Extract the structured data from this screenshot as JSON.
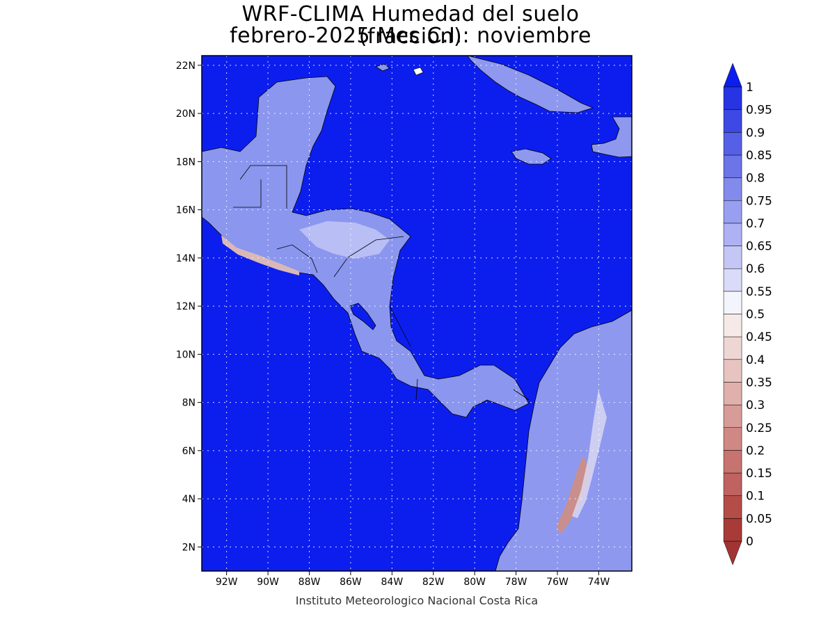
{
  "title": {
    "line1": "WRF-CLIMA Humedad del suelo (fraccion)",
    "line2": "febrero-2025 Mes C.I.: noviembre"
  },
  "footer": "Instituto Meteorologico Nacional Costa Rica",
  "map": {
    "lon_range": [
      -93.2,
      -72.4
    ],
    "lat_range": [
      1.0,
      22.4
    ],
    "ocean_color": "#0c1eee",
    "x_ticks": [
      {
        "value": -92,
        "label": "92W"
      },
      {
        "value": -90,
        "label": "90W"
      },
      {
        "value": -88,
        "label": "88W"
      },
      {
        "value": -86,
        "label": "86W"
      },
      {
        "value": -84,
        "label": "84W"
      },
      {
        "value": -82,
        "label": "82W"
      },
      {
        "value": -80,
        "label": "80W"
      },
      {
        "value": -78,
        "label": "78W"
      },
      {
        "value": -76,
        "label": "76W"
      },
      {
        "value": -74,
        "label": "74W"
      }
    ],
    "y_ticks": [
      {
        "value": 2,
        "label": "2N"
      },
      {
        "value": 4,
        "label": "4N"
      },
      {
        "value": 6,
        "label": "6N"
      },
      {
        "value": 8,
        "label": "8N"
      },
      {
        "value": 10,
        "label": "10N"
      },
      {
        "value": 12,
        "label": "12N"
      },
      {
        "value": 14,
        "label": "14N"
      },
      {
        "value": 16,
        "label": "16N"
      },
      {
        "value": 18,
        "label": "18N"
      },
      {
        "value": 20,
        "label": "20N"
      },
      {
        "value": 22,
        "label": "22N"
      }
    ]
  },
  "colorbar": {
    "levels": [
      "0",
      "0.05",
      "0.1",
      "0.15",
      "0.2",
      "0.25",
      "0.3",
      "0.35",
      "0.4",
      "0.45",
      "0.5",
      "0.55",
      "0.6",
      "0.65",
      "0.7",
      "0.75",
      "0.8",
      "0.85",
      "0.9",
      "0.95",
      "1"
    ],
    "colors": [
      "#a83a38",
      "#b44c48",
      "#bf6260",
      "#c77470",
      "#cf8884",
      "#d79c98",
      "#dfb0ac",
      "#e7c4c0",
      "#eed6d4",
      "#f6eae8",
      "#f4f4fc",
      "#dadaf9",
      "#c4c6f6",
      "#aeb2f3",
      "#989ef0",
      "#828aec",
      "#6c74e8",
      "#5660e6",
      "#3e48e4",
      "#2634e2"
    ],
    "under_color": "#a33434",
    "over_color": "#0c1eee"
  }
}
